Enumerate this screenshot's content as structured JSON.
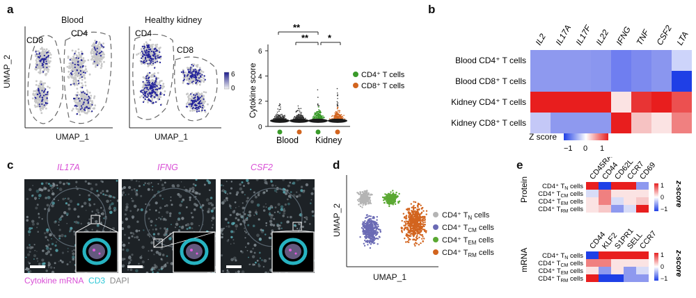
{
  "panel_labels": {
    "a": "a",
    "b": "b",
    "c": "c",
    "d": "d",
    "e": "e"
  },
  "panel_a": {
    "umap_titles": [
      "Blood",
      "Healthy kidney"
    ],
    "blood_groups": {
      "cd8": "CD8",
      "cd4": "CD4"
    },
    "kidney_groups": {
      "cd4": "CD4",
      "cd8": "CD8"
    },
    "xlabel": "UMAP_1",
    "ylabel": "UMAP_2",
    "colorbar": {
      "max": "6",
      "min": "0",
      "color_low": "#f2f2f2",
      "color_high": "#1a1a8c"
    },
    "violin": {
      "ylabel": "Cytokine score",
      "yticks": [
        "0",
        "2",
        "4",
        "6"
      ],
      "groups": [
        "Blood",
        "Kidney"
      ],
      "significance": [
        "**",
        "**",
        "*"
      ],
      "legend": [
        {
          "label": "CD4⁺ T cells",
          "color": "#3a9a2a"
        },
        {
          "label": "CD8⁺ T cells",
          "color": "#d2641e"
        }
      ]
    }
  },
  "panel_b": {
    "genes": [
      "IL2",
      "IL17A",
      "IL17F",
      "IL22",
      "IFNG",
      "TNF",
      "CSF2",
      "LTA"
    ],
    "rows": [
      "Blood CD4⁺ T cells",
      "Blood CD8⁺ T cells",
      "Kidney CD4⁺ T cells",
      "Kidney CD8⁺ T cells"
    ],
    "legend_title": "Z score",
    "legend_ticks": [
      "−1",
      "0",
      "1"
    ]
  },
  "panel_c": {
    "titles": [
      "IL17A",
      "IFNG",
      "CSF2"
    ],
    "legend": [
      {
        "label": "Cytokine mRNA",
        "color": "#d94fd6"
      },
      {
        "label": "CD3",
        "color": "#2bc7d6"
      },
      {
        "label": "DAPI",
        "color": "#9a9a9a"
      }
    ]
  },
  "panel_d": {
    "xlabel": "UMAP_1",
    "ylabel": "UMAP_2",
    "legend": [
      {
        "label": "CD4⁺ T",
        "sub": "N",
        "suffix": " cells",
        "color": "#b4b4b4"
      },
      {
        "label": "CD4⁺ T",
        "sub": "CM",
        "suffix": " cells",
        "color": "#6a6ab4"
      },
      {
        "label": "CD4⁺ T",
        "sub": "EM",
        "suffix": " cells",
        "color": "#5aa832"
      },
      {
        "label": "CD4⁺ T",
        "sub": "RM",
        "suffix": " cells",
        "color": "#d2641e"
      }
    ]
  },
  "panel_e": {
    "protein": {
      "side_label": "Protein",
      "markers": [
        "CD45RA",
        "CD44",
        "CD62L",
        "CCR7",
        "CD69"
      ],
      "rows": [
        {
          "t": "CD4⁺ T",
          "s": "N"
        },
        {
          "t": "CD4⁺ T",
          "s": "CM"
        },
        {
          "t": "CD4⁺ T",
          "s": "EM"
        },
        {
          "t": "CD4⁺ T",
          "s": "RM"
        }
      ]
    },
    "mrna": {
      "side_label": "mRNA",
      "markers": [
        "CD44",
        "KLF2",
        "S1PR1",
        "SELL",
        "CCR7"
      ],
      "rows": [
        {
          "t": "CD4⁺ T",
          "s": "N"
        },
        {
          "t": "CD4⁺ T",
          "s": "CM"
        },
        {
          "t": "CD4⁺ T",
          "s": "EM"
        },
        {
          "t": "CD4⁺ T",
          "s": "RM"
        }
      ]
    },
    "row_suffix": " cells",
    "scale_label": "z-score",
    "scale_ticks": [
      "1",
      "0",
      "−1"
    ]
  }
}
